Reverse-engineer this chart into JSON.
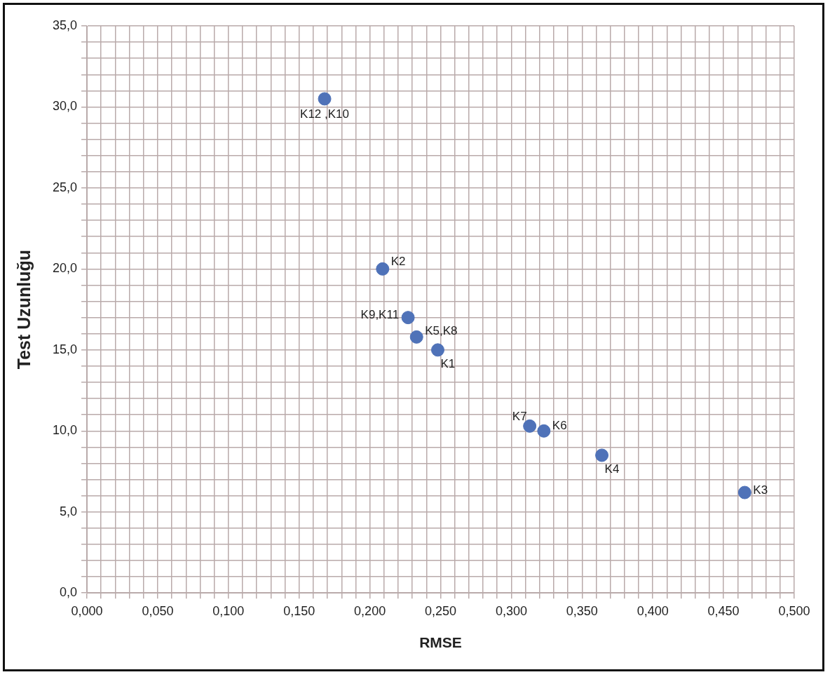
{
  "chart_data": {
    "type": "scatter",
    "xlabel": "RMSE",
    "ylabel": "Test Uzunluğu",
    "series": [
      {
        "color": "#4f72b8",
        "x": [
          0.168,
          0.209,
          0.227,
          0.233,
          0.248,
          0.313,
          0.323,
          0.364,
          0.465
        ],
        "values": [
          30.5,
          20.0,
          17.0,
          15.8,
          15.0,
          10.3,
          10.0,
          8.5,
          6.2
        ],
        "value_labels": [
          "K12 ,K10",
          "K2",
          "K9,K11",
          "K5,K8",
          "K1",
          "K7",
          "K6",
          "K4",
          "K3"
        ]
      }
    ],
    "marker": "circle",
    "grid": true,
    "legend": false,
    "xlim": [
      0,
      0.5
    ],
    "ylim": [
      0,
      35
    ],
    "xticks": [
      {
        "value": 0,
        "label": "0,000"
      },
      {
        "value": 0.01,
        "label": null
      },
      {
        "value": 0.02,
        "label": null
      },
      {
        "value": 0.03,
        "label": null
      },
      {
        "value": 0.04,
        "label": null
      },
      {
        "value": 0.05,
        "label": "0,050"
      },
      {
        "value": 0.06,
        "label": null
      },
      {
        "value": 0.07,
        "label": null
      },
      {
        "value": 0.08,
        "label": null
      },
      {
        "value": 0.09,
        "label": null
      },
      {
        "value": 0.1,
        "label": "0,100"
      },
      {
        "value": 0.11,
        "label": null
      },
      {
        "value": 0.12,
        "label": null
      },
      {
        "value": 0.13,
        "label": null
      },
      {
        "value": 0.14,
        "label": null
      },
      {
        "value": 0.15,
        "label": "0,150"
      },
      {
        "value": 0.16,
        "label": null
      },
      {
        "value": 0.17,
        "label": null
      },
      {
        "value": 0.18,
        "label": null
      },
      {
        "value": 0.19,
        "label": null
      },
      {
        "value": 0.2,
        "label": "0,200"
      },
      {
        "value": 0.21,
        "label": null
      },
      {
        "value": 0.22,
        "label": null
      },
      {
        "value": 0.23,
        "label": null
      },
      {
        "value": 0.24,
        "label": null
      },
      {
        "value": 0.25,
        "label": "0,250"
      },
      {
        "value": 0.26,
        "label": null
      },
      {
        "value": 0.27,
        "label": null
      },
      {
        "value": 0.28,
        "label": null
      },
      {
        "value": 0.29,
        "label": null
      },
      {
        "value": 0.3,
        "label": "0,300"
      },
      {
        "value": 0.31,
        "label": null
      },
      {
        "value": 0.32,
        "label": null
      },
      {
        "value": 0.33,
        "label": null
      },
      {
        "value": 0.34,
        "label": null
      },
      {
        "value": 0.35,
        "label": "0,350"
      },
      {
        "value": 0.36,
        "label": null
      },
      {
        "value": 0.37,
        "label": null
      },
      {
        "value": 0.38,
        "label": null
      },
      {
        "value": 0.39,
        "label": null
      },
      {
        "value": 0.4,
        "label": "0,400"
      },
      {
        "value": 0.41,
        "label": null
      },
      {
        "value": 0.42,
        "label": null
      },
      {
        "value": 0.43,
        "label": null
      },
      {
        "value": 0.44,
        "label": null
      },
      {
        "value": 0.45,
        "label": "0,450"
      },
      {
        "value": 0.46,
        "label": null
      },
      {
        "value": 0.47,
        "label": null
      },
      {
        "value": 0.48,
        "label": null
      },
      {
        "value": 0.49,
        "label": null
      },
      {
        "value": 0.5,
        "label": "0,500"
      }
    ],
    "yticks": [
      {
        "value": 0,
        "label": "0,0"
      },
      {
        "value": 1,
        "label": null
      },
      {
        "value": 2,
        "label": null
      },
      {
        "value": 3,
        "label": null
      },
      {
        "value": 4,
        "label": null
      },
      {
        "value": 5,
        "label": "5,0"
      },
      {
        "value": 6,
        "label": null
      },
      {
        "value": 7,
        "label": null
      },
      {
        "value": 8,
        "label": null
      },
      {
        "value": 9,
        "label": null
      },
      {
        "value": 10,
        "label": "10,0"
      },
      {
        "value": 11,
        "label": null
      },
      {
        "value": 12,
        "label": null
      },
      {
        "value": 13,
        "label": null
      },
      {
        "value": 14,
        "label": null
      },
      {
        "value": 15,
        "label": "15,0"
      },
      {
        "value": 16,
        "label": null
      },
      {
        "value": 17,
        "label": null
      },
      {
        "value": 18,
        "label": null
      },
      {
        "value": 19,
        "label": null
      },
      {
        "value": 20,
        "label": "20,0"
      },
      {
        "value": 21,
        "label": null
      },
      {
        "value": 22,
        "label": null
      },
      {
        "value": 23,
        "label": null
      },
      {
        "value": 24,
        "label": null
      },
      {
        "value": 25,
        "label": "25,0"
      },
      {
        "value": 26,
        "label": null
      },
      {
        "value": 27,
        "label": null
      },
      {
        "value": 28,
        "label": null
      },
      {
        "value": 29,
        "label": null
      },
      {
        "value": 30,
        "label": "30,0"
      },
      {
        "value": 31,
        "label": null
      },
      {
        "value": 32,
        "label": null
      },
      {
        "value": 33,
        "label": null
      },
      {
        "value": 34,
        "label": null
      },
      {
        "value": 35,
        "label": "35,0"
      }
    ]
  }
}
